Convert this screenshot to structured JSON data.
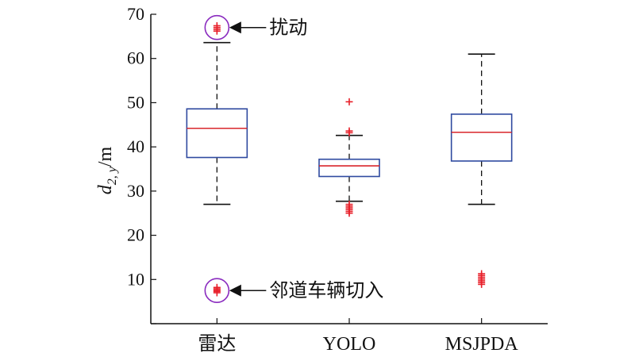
{
  "chart_data": {
    "type": "box",
    "ylabel": {
      "main": "d",
      "subscript": "2, y",
      "unit": "/m"
    },
    "ylim": [
      0,
      70
    ],
    "yticks": [
      "0",
      "10",
      "20",
      "30",
      "40",
      "50",
      "60",
      "70"
    ],
    "categories": [
      "雷达",
      "YOLO",
      "MSJPDA"
    ],
    "boxes": [
      {
        "category": "雷达",
        "whisker_low": 27,
        "q1": 37.6,
        "median": 44.2,
        "q3": 48.6,
        "whisker_high": 63.6,
        "outliers": [
          66.2,
          66.6,
          67.0,
          67.4,
          7.0,
          7.3,
          7.6,
          7.9,
          8.2
        ]
      },
      {
        "category": "YOLO",
        "whisker_low": 27.7,
        "q1": 33.3,
        "median": 35.7,
        "q3": 37.2,
        "whisker_high": 42.6,
        "outliers": [
          50.2,
          43.6,
          43.2,
          27.0,
          26.6,
          26.2,
          25.8,
          25.4,
          25.0
        ]
      },
      {
        "category": "MSJPDA",
        "whisker_low": 27,
        "q1": 36.8,
        "median": 43.3,
        "q3": 47.4,
        "whisker_high": 61.0,
        "outliers": [
          8.9,
          9.3,
          9.7,
          10.1,
          10.5,
          10.9,
          11.3
        ]
      }
    ],
    "annotations": [
      {
        "text": "扰动",
        "category": "雷达",
        "y": 67
      },
      {
        "text": "邻道车辆切入",
        "category": "雷达",
        "y": 7.5
      }
    ],
    "colors": {
      "box": "#2f4aa0",
      "median": "#d9262b",
      "outlier": "#e8202a",
      "whisker": "#111111",
      "circle": "#8a2bbf"
    }
  }
}
